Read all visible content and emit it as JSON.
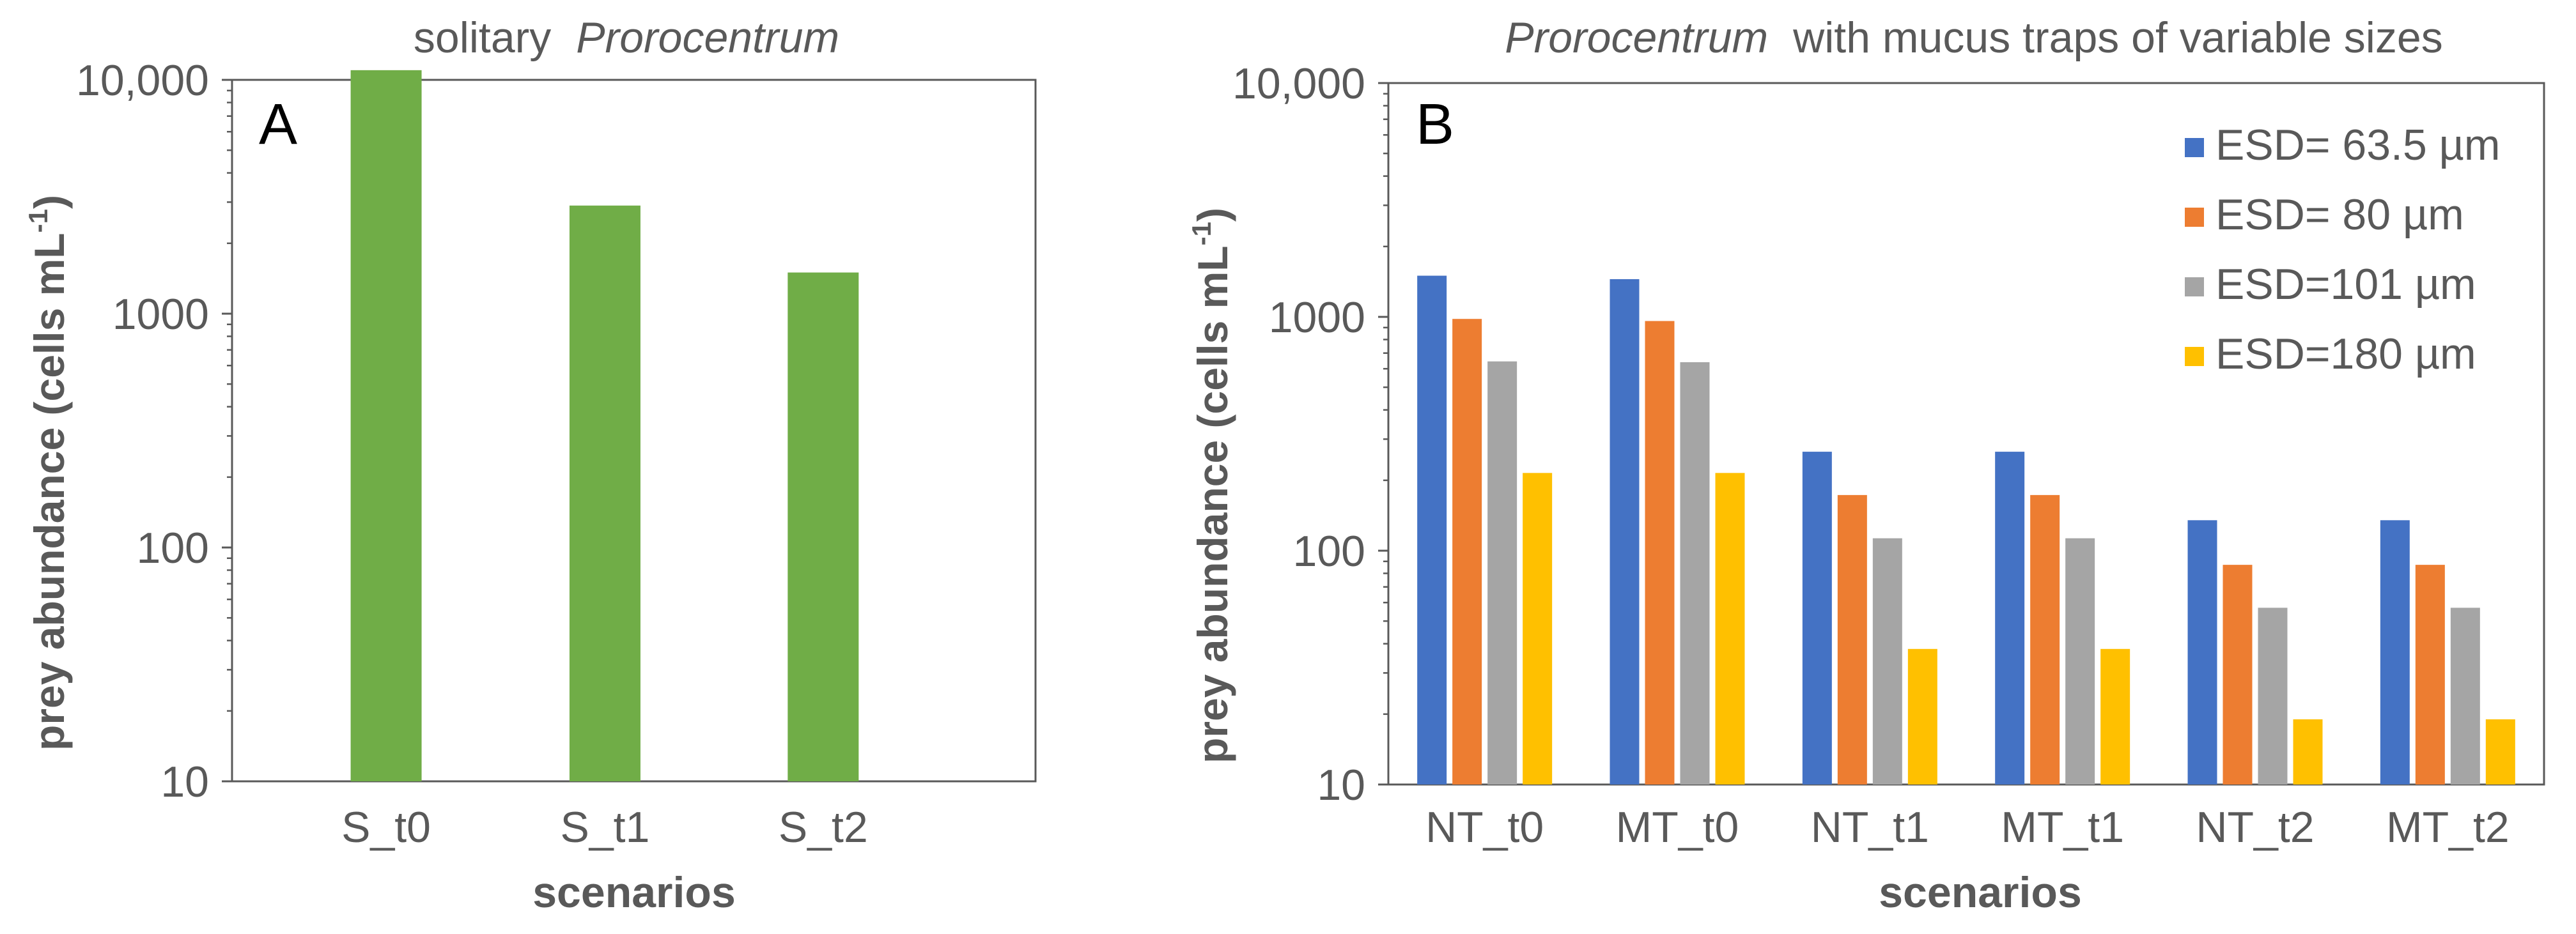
{
  "colors": {
    "panelA_bar": "#70ad47",
    "series": [
      "#4472c4",
      "#ed7d31",
      "#a5a5a5",
      "#ffc000"
    ],
    "text": "#595959",
    "axis": "#595959"
  },
  "chart_data": [
    {
      "panel": "A",
      "type": "bar",
      "title": "solitary",
      "title_italic": "Prorocentrum",
      "xlabel": "scenarios",
      "ylabel": "prey abundance (cells mL",
      "ylabel_sup": "-1",
      "ylabel_end": ")",
      "yscale": "log",
      "ylim": [
        10,
        10000
      ],
      "yticks": [
        10,
        100,
        1000,
        10000
      ],
      "ytick_labels": [
        "10",
        "100",
        "1000",
        "10,000"
      ],
      "categories": [
        "S_t0",
        "S_t1",
        "S_t2"
      ],
      "values": [
        11000,
        2900,
        1500
      ]
    },
    {
      "panel": "B",
      "type": "bar",
      "title_italic": "Prorocentrum",
      "title": "with mucus traps of variable sizes",
      "xlabel": "scenarios",
      "ylabel": "prey abundance (cells mL",
      "ylabel_sup": "-1",
      "ylabel_end": ")",
      "yscale": "log",
      "ylim": [
        10,
        10000
      ],
      "yticks": [
        10,
        100,
        1000,
        10000
      ],
      "ytick_labels": [
        "10",
        "100",
        "1000",
        "10,000"
      ],
      "legend_position": "top-right",
      "categories": [
        "NT_t0",
        "MT_t0",
        "NT_t1",
        "MT_t1",
        "NT_t2",
        "MT_t2"
      ],
      "series": [
        {
          "name": "ESD= 63.5 µm",
          "values": [
            1500,
            1450,
            265,
            265,
            135,
            135
          ]
        },
        {
          "name": "ESD= 80 µm",
          "values": [
            980,
            960,
            173,
            173,
            87,
            87
          ]
        },
        {
          "name": "ESD=101 µm",
          "values": [
            645,
            640,
            113,
            113,
            57,
            57
          ]
        },
        {
          "name": "ESD=180 µm",
          "values": [
            215,
            215,
            38,
            38,
            19,
            19
          ]
        }
      ]
    }
  ]
}
